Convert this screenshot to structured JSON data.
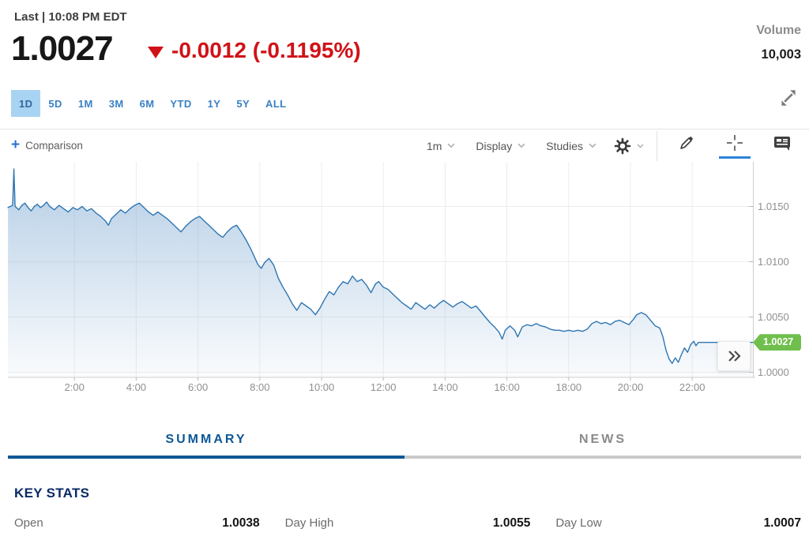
{
  "header": {
    "last_label": "Last | 10:08 PM EDT",
    "price": "1.0027",
    "change": "-0.0012 (-0.1195%)",
    "direction": "down",
    "volume_label": "Volume",
    "volume_value": "10,003"
  },
  "range_tabs": [
    {
      "label": "1D",
      "active": true
    },
    {
      "label": "5D",
      "active": false
    },
    {
      "label": "1M",
      "active": false
    },
    {
      "label": "3M",
      "active": false
    },
    {
      "label": "6M",
      "active": false
    },
    {
      "label": "YTD",
      "active": false
    },
    {
      "label": "1Y",
      "active": false
    },
    {
      "label": "5Y",
      "active": false
    },
    {
      "label": "ALL",
      "active": false
    }
  ],
  "chart_toolbar": {
    "comparison_label": "Comparison",
    "interval_label": "1m",
    "display_label": "Display",
    "studies_label": "Studies",
    "icons": [
      "gear-icon",
      "pencil-icon",
      "crosshair-icon",
      "news-icon"
    ],
    "active_tool": "crosshair"
  },
  "chart_data": {
    "type": "area",
    "x_unit": "hour of day (EDT)",
    "grid": true,
    "legend": "none",
    "line_color": "#2e76b2",
    "fill_color": "#7da8d2",
    "tag_color": "#70bf4c",
    "xlim": [
      -0.15,
      24.0
    ],
    "ylim": [
      0.9995,
      1.0195
    ],
    "y_ticks": [
      {
        "v": 1.015,
        "label": "1.0150"
      },
      {
        "v": 1.01,
        "label": "1.0100"
      },
      {
        "v": 1.005,
        "label": "1.0050"
      },
      {
        "v": 1.0,
        "label": "1.0000"
      }
    ],
    "x_ticks": [
      {
        "h": 2,
        "label": "2:00"
      },
      {
        "h": 4,
        "label": "4:00"
      },
      {
        "h": 6,
        "label": "6:00"
      },
      {
        "h": 8,
        "label": "8:00"
      },
      {
        "h": 10,
        "label": "10:00"
      },
      {
        "h": 12,
        "label": "12:00"
      },
      {
        "h": 14,
        "label": "14:00"
      },
      {
        "h": 16,
        "label": "16:00"
      },
      {
        "h": 18,
        "label": "18:00"
      },
      {
        "h": 20,
        "label": "20:00"
      },
      {
        "h": 22,
        "label": "22:00"
      }
    ],
    "last_price": 1.0027,
    "last_price_label": "1.0027",
    "open": 1.0038,
    "day_high": 1.0055,
    "day_low": 1.0007,
    "points": [
      [
        -0.15,
        1.0149
      ],
      [
        0.0,
        1.0151
      ],
      [
        0.04,
        1.0184
      ],
      [
        0.08,
        1.015
      ],
      [
        0.2,
        1.0147
      ],
      [
        0.3,
        1.0151
      ],
      [
        0.4,
        1.0153
      ],
      [
        0.5,
        1.0149
      ],
      [
        0.6,
        1.0146
      ],
      [
        0.7,
        1.015
      ],
      [
        0.8,
        1.0152
      ],
      [
        0.9,
        1.0149
      ],
      [
        1.0,
        1.0151
      ],
      [
        1.1,
        1.0154
      ],
      [
        1.2,
        1.015
      ],
      [
        1.35,
        1.0147
      ],
      [
        1.5,
        1.0151
      ],
      [
        1.65,
        1.0148
      ],
      [
        1.8,
        1.0145
      ],
      [
        1.95,
        1.0149
      ],
      [
        2.1,
        1.0147
      ],
      [
        2.25,
        1.015
      ],
      [
        2.4,
        1.0146
      ],
      [
        2.55,
        1.0148
      ],
      [
        2.7,
        1.0144
      ],
      [
        2.85,
        1.0141
      ],
      [
        3.0,
        1.0137
      ],
      [
        3.1,
        1.0133
      ],
      [
        3.2,
        1.0139
      ],
      [
        3.35,
        1.0143
      ],
      [
        3.5,
        1.0147
      ],
      [
        3.65,
        1.0144
      ],
      [
        3.8,
        1.0148
      ],
      [
        3.95,
        1.0151
      ],
      [
        4.1,
        1.0153
      ],
      [
        4.25,
        1.0149
      ],
      [
        4.4,
        1.0145
      ],
      [
        4.55,
        1.0142
      ],
      [
        4.7,
        1.0145
      ],
      [
        4.85,
        1.0142
      ],
      [
        5.0,
        1.0139
      ],
      [
        5.15,
        1.0135
      ],
      [
        5.3,
        1.0131
      ],
      [
        5.45,
        1.0127
      ],
      [
        5.6,
        1.0132
      ],
      [
        5.75,
        1.0136
      ],
      [
        5.9,
        1.0139
      ],
      [
        6.05,
        1.0141
      ],
      [
        6.2,
        1.0137
      ],
      [
        6.35,
        1.0133
      ],
      [
        6.5,
        1.0129
      ],
      [
        6.65,
        1.0125
      ],
      [
        6.8,
        1.0122
      ],
      [
        6.95,
        1.0127
      ],
      [
        7.1,
        1.0131
      ],
      [
        7.25,
        1.0133
      ],
      [
        7.4,
        1.0127
      ],
      [
        7.55,
        1.012
      ],
      [
        7.7,
        1.0112
      ],
      [
        7.85,
        1.0103
      ],
      [
        7.95,
        1.0097
      ],
      [
        8.05,
        1.0094
      ],
      [
        8.15,
        1.0099
      ],
      [
        8.3,
        1.0103
      ],
      [
        8.45,
        1.0097
      ],
      [
        8.6,
        1.0085
      ],
      [
        8.75,
        1.0077
      ],
      [
        8.9,
        1.007
      ],
      [
        9.05,
        1.0062
      ],
      [
        9.2,
        1.0056
      ],
      [
        9.35,
        1.0063
      ],
      [
        9.5,
        1.006
      ],
      [
        9.65,
        1.0057
      ],
      [
        9.8,
        1.0052
      ],
      [
        9.95,
        1.0058
      ],
      [
        10.1,
        1.0066
      ],
      [
        10.25,
        1.0073
      ],
      [
        10.4,
        1.007
      ],
      [
        10.55,
        1.0077
      ],
      [
        10.7,
        1.0082
      ],
      [
        10.85,
        1.008
      ],
      [
        11.0,
        1.0087
      ],
      [
        11.15,
        1.0082
      ],
      [
        11.3,
        1.0084
      ],
      [
        11.45,
        1.0079
      ],
      [
        11.6,
        1.0072
      ],
      [
        11.75,
        1.008
      ],
      [
        11.85,
        1.0082
      ],
      [
        12.0,
        1.0077
      ],
      [
        12.15,
        1.0075
      ],
      [
        12.3,
        1.0071
      ],
      [
        12.45,
        1.0067
      ],
      [
        12.6,
        1.0063
      ],
      [
        12.75,
        1.006
      ],
      [
        12.9,
        1.0057
      ],
      [
        13.05,
        1.0063
      ],
      [
        13.2,
        1.006
      ],
      [
        13.35,
        1.0057
      ],
      [
        13.5,
        1.0061
      ],
      [
        13.65,
        1.0058
      ],
      [
        13.8,
        1.0062
      ],
      [
        13.95,
        1.0065
      ],
      [
        14.1,
        1.0062
      ],
      [
        14.25,
        1.0059
      ],
      [
        14.4,
        1.0062
      ],
      [
        14.55,
        1.0064
      ],
      [
        14.7,
        1.0061
      ],
      [
        14.85,
        1.0058
      ],
      [
        15.0,
        1.006
      ],
      [
        15.15,
        1.0055
      ],
      [
        15.3,
        1.005
      ],
      [
        15.45,
        1.0045
      ],
      [
        15.6,
        1.0041
      ],
      [
        15.75,
        1.0036
      ],
      [
        15.85,
        1.003
      ],
      [
        15.95,
        1.0038
      ],
      [
        16.1,
        1.0042
      ],
      [
        16.25,
        1.0038
      ],
      [
        16.35,
        1.0032
      ],
      [
        16.5,
        1.0041
      ],
      [
        16.65,
        1.0043
      ],
      [
        16.8,
        1.0042
      ],
      [
        16.95,
        1.0044
      ],
      [
        17.1,
        1.0042
      ],
      [
        17.25,
        1.0041
      ],
      [
        17.4,
        1.0039
      ],
      [
        17.55,
        1.0038
      ],
      [
        17.7,
        1.0038
      ],
      [
        17.85,
        1.0037
      ],
      [
        18.0,
        1.0038
      ],
      [
        18.15,
        1.0037
      ],
      [
        18.3,
        1.0038
      ],
      [
        18.45,
        1.0037
      ],
      [
        18.6,
        1.0039
      ],
      [
        18.75,
        1.0044
      ],
      [
        18.9,
        1.0046
      ],
      [
        19.05,
        1.0044
      ],
      [
        19.2,
        1.0045
      ],
      [
        19.35,
        1.0043
      ],
      [
        19.5,
        1.0046
      ],
      [
        19.65,
        1.0047
      ],
      [
        19.8,
        1.0045
      ],
      [
        19.95,
        1.0043
      ],
      [
        20.1,
        1.0048
      ],
      [
        20.2,
        1.0052
      ],
      [
        20.35,
        1.0054
      ],
      [
        20.5,
        1.0052
      ],
      [
        20.65,
        1.0047
      ],
      [
        20.8,
        1.0042
      ],
      [
        20.95,
        1.004
      ],
      [
        21.05,
        1.0032
      ],
      [
        21.15,
        1.002
      ],
      [
        21.25,
        1.0012
      ],
      [
        21.35,
        1.0008
      ],
      [
        21.45,
        1.0013
      ],
      [
        21.55,
        1.0009
      ],
      [
        21.65,
        1.0016
      ],
      [
        21.75,
        1.0022
      ],
      [
        21.85,
        1.0018
      ],
      [
        21.95,
        1.0025
      ],
      [
        22.05,
        1.0028
      ],
      [
        22.12,
        1.0024
      ],
      [
        22.2,
        1.0027
      ],
      [
        23.95,
        1.0027
      ]
    ]
  },
  "section_tabs": [
    {
      "label": "SUMMARY",
      "active": true
    },
    {
      "label": "NEWS",
      "active": false
    }
  ],
  "key_stats": {
    "title": "KEY STATS",
    "rows": [
      {
        "label": "Open",
        "value": "1.0038"
      },
      {
        "label": "Day High",
        "value": "1.0055"
      },
      {
        "label": "Day Low",
        "value": "1.0007"
      }
    ]
  }
}
